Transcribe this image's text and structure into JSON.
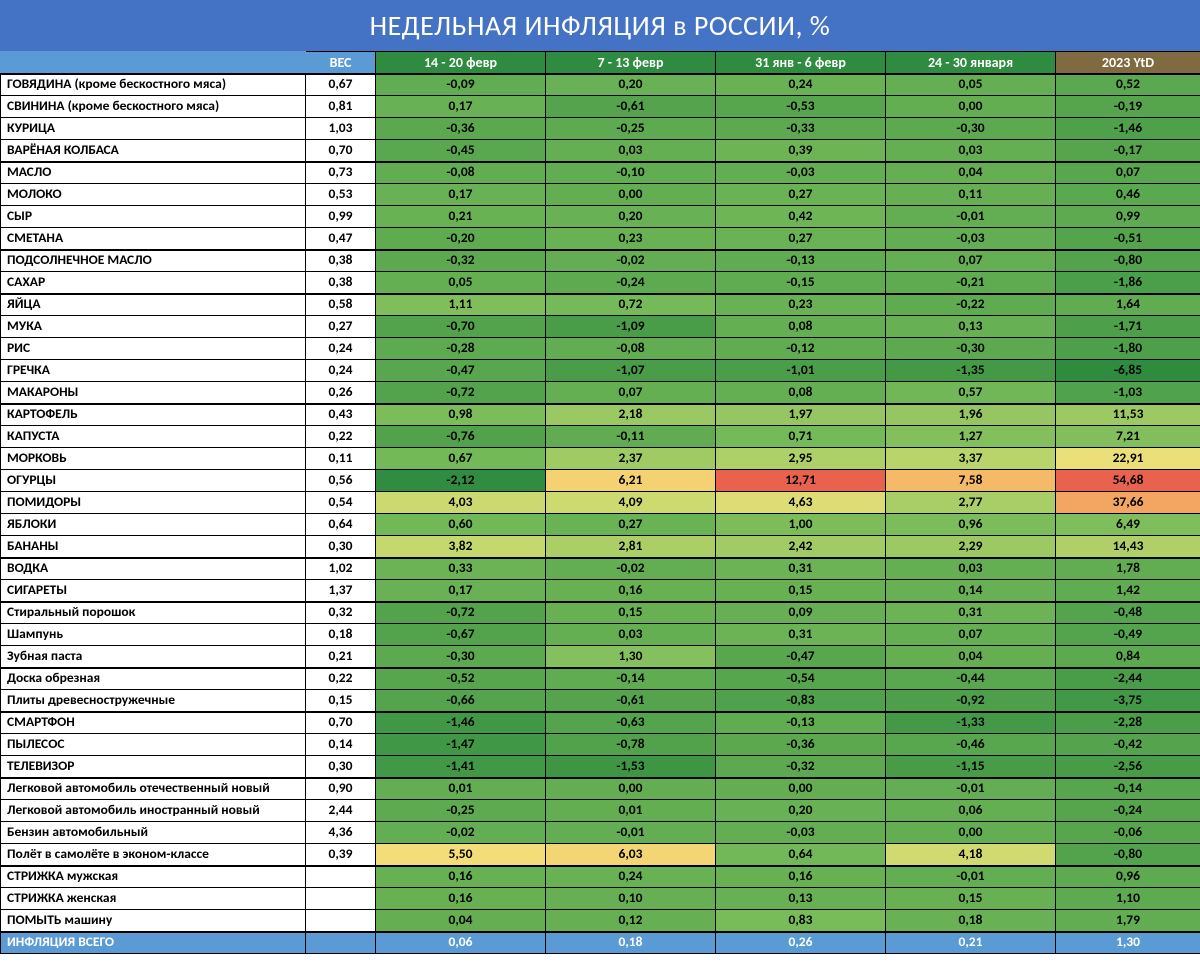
{
  "title": "НЕДЕЛЬНАЯ ИНФЛЯЦИЯ в РОССИИ, %",
  "columns": {
    "name_header": "",
    "weight_header": "ВЕС",
    "weeks": [
      "14 - 20 февр",
      "7 - 13 февр",
      "31 янв - 6 февр",
      "24 - 30 января"
    ],
    "ytd_header": "2023 YtD"
  },
  "heatmap_palette": {
    "comment": "green = negative/low, yellow = near-zero, orange/red = high positive",
    "scale": [
      {
        "t": 0.0,
        "c": "#2e8b3f"
      },
      {
        "t": 0.2,
        "c": "#77bb59"
      },
      {
        "t": 0.4,
        "c": "#c4d86e"
      },
      {
        "t": 0.5,
        "c": "#f2e07a"
      },
      {
        "t": 0.6,
        "c": "#f7c96b"
      },
      {
        "t": 0.8,
        "c": "#f08f5c"
      },
      {
        "t": 1.0,
        "c": "#e8614d"
      }
    ],
    "week_min": -2.2,
    "week_max": 12.8,
    "ytd_min": -7.0,
    "ytd_max": 55.0
  },
  "sections": [
    {
      "rows": [
        {
          "name": "ГОВЯДИНА (кроме бескостного мяса)",
          "weight": "0,67",
          "vals": [
            -0.09,
            0.2,
            0.24,
            0.05
          ],
          "ytd": 0.52
        },
        {
          "name": "СВИНИНА (кроме бескостного мяса)",
          "weight": "0,81",
          "vals": [
            0.17,
            -0.61,
            -0.53,
            0.0
          ],
          "ytd": -0.19
        },
        {
          "name": "КУРИЦА",
          "weight": "1,03",
          "vals": [
            -0.36,
            -0.25,
            -0.33,
            -0.3
          ],
          "ytd": -1.46
        },
        {
          "name": "ВАРЁНАЯ КОЛБАСА",
          "weight": "0,70",
          "vals": [
            -0.45,
            0.03,
            0.39,
            0.03
          ],
          "ytd": -0.17
        }
      ]
    },
    {
      "rows": [
        {
          "name": "МАСЛО",
          "weight": "0,73",
          "vals": [
            -0.08,
            -0.1,
            -0.03,
            0.04
          ],
          "ytd": 0.07
        },
        {
          "name": "МОЛОКО",
          "weight": "0,53",
          "vals": [
            0.17,
            0.0,
            0.27,
            0.11
          ],
          "ytd": 0.46
        },
        {
          "name": "СЫР",
          "weight": "0,99",
          "vals": [
            0.21,
            0.2,
            0.42,
            -0.01
          ],
          "ytd": 0.99
        },
        {
          "name": "СМЕТАНА",
          "weight": "0,47",
          "vals": [
            -0.2,
            0.23,
            0.27,
            -0.03
          ],
          "ytd": -0.51
        }
      ]
    },
    {
      "rows": [
        {
          "name": "ПОДСОЛНЕЧНОЕ МАСЛО",
          "weight": "0,38",
          "vals": [
            -0.32,
            -0.02,
            -0.13,
            0.07
          ],
          "ytd": -0.8
        },
        {
          "name": "САХАР",
          "weight": "0,38",
          "vals": [
            0.05,
            -0.24,
            -0.15,
            -0.21
          ],
          "ytd": -1.86
        }
      ]
    },
    {
      "rows": [
        {
          "name": "ЯЙЦА",
          "weight": "0,58",
          "vals": [
            1.11,
            0.72,
            0.23,
            -0.22
          ],
          "ytd": 1.64
        },
        {
          "name": "МУКА",
          "weight": "0,27",
          "vals": [
            -0.7,
            -1.09,
            0.08,
            0.13
          ],
          "ytd": -1.71
        },
        {
          "name": "РИС",
          "weight": "0,24",
          "vals": [
            -0.28,
            -0.08,
            -0.12,
            -0.3
          ],
          "ytd": -1.8
        },
        {
          "name": "ГРЕЧКА",
          "weight": "0,24",
          "vals": [
            -0.47,
            -1.07,
            -1.01,
            -1.35
          ],
          "ytd": -6.85
        },
        {
          "name": "МАКАРОНЫ",
          "weight": "0,26",
          "vals": [
            -0.72,
            0.07,
            0.08,
            0.57
          ],
          "ytd": -1.03
        }
      ]
    },
    {
      "rows": [
        {
          "name": "КАРТОФЕЛЬ",
          "weight": "0,43",
          "vals": [
            0.98,
            2.18,
            1.97,
            1.96
          ],
          "ytd": 11.53
        },
        {
          "name": "КАПУСТА",
          "weight": "0,22",
          "vals": [
            -0.76,
            -0.11,
            0.71,
            1.27
          ],
          "ytd": 7.21
        },
        {
          "name": "МОРКОВЬ",
          "weight": "0,11",
          "vals": [
            0.67,
            2.37,
            2.95,
            3.37
          ],
          "ytd": 22.91
        },
        {
          "name": "ОГУРЦЫ",
          "weight": "0,56",
          "vals": [
            -2.12,
            6.21,
            12.71,
            7.58
          ],
          "ytd": 54.68
        },
        {
          "name": "ПОМИДОРЫ",
          "weight": "0,54",
          "vals": [
            4.03,
            4.09,
            4.63,
            2.77
          ],
          "ytd": 37.66
        },
        {
          "name": "ЯБЛОКИ",
          "weight": "0,64",
          "vals": [
            0.6,
            0.27,
            1.0,
            0.96
          ],
          "ytd": 6.49
        },
        {
          "name": "БАНАНЫ",
          "weight": "0,30",
          "vals": [
            3.82,
            2.81,
            2.42,
            2.29
          ],
          "ytd": 14.43
        }
      ]
    },
    {
      "rows": [
        {
          "name": "ВОДКА",
          "weight": "1,02",
          "vals": [
            0.33,
            -0.02,
            0.31,
            0.03
          ],
          "ytd": 1.78
        },
        {
          "name": "СИГАРЕТЫ",
          "weight": "1,37",
          "vals": [
            0.17,
            0.16,
            0.15,
            0.14
          ],
          "ytd": 1.42
        }
      ]
    },
    {
      "rows": [
        {
          "name": "Стиральный порошок",
          "weight": "0,32",
          "vals": [
            -0.72,
            0.15,
            0.09,
            0.31
          ],
          "ytd": -0.48
        },
        {
          "name": "Шампунь",
          "weight": "0,18",
          "vals": [
            -0.67,
            0.03,
            0.31,
            0.07
          ],
          "ytd": -0.49
        },
        {
          "name": "Зубная паста",
          "weight": "0,21",
          "vals": [
            -0.3,
            1.3,
            -0.47,
            0.04
          ],
          "ytd": 0.84
        }
      ]
    },
    {
      "rows": [
        {
          "name": "Доска обрезная",
          "weight": "0,22",
          "vals": [
            -0.52,
            -0.14,
            -0.54,
            -0.44
          ],
          "ytd": -2.44
        },
        {
          "name": "Плиты древесностружечные",
          "weight": "0,15",
          "vals": [
            -0.66,
            -0.61,
            -0.83,
            -0.92
          ],
          "ytd": -3.75
        }
      ]
    },
    {
      "rows": [
        {
          "name": "СМАРТФОН",
          "weight": "0,70",
          "vals": [
            -1.46,
            -0.63,
            -0.13,
            -1.33
          ],
          "ytd": -2.28
        },
        {
          "name": "ПЫЛЕСОС",
          "weight": "0,14",
          "vals": [
            -1.47,
            -0.78,
            -0.36,
            -0.46
          ],
          "ytd": -0.42
        },
        {
          "name": "ТЕЛЕВИЗОР",
          "weight": "0,30",
          "vals": [
            -1.41,
            -1.53,
            -0.32,
            -1.15
          ],
          "ytd": -2.56
        }
      ]
    },
    {
      "rows": [
        {
          "name": "Легковой автомобиль отечественный новый",
          "weight": "0,90",
          "vals": [
            0.01,
            0.0,
            0.0,
            -0.01
          ],
          "ytd": -0.14
        },
        {
          "name": "Легковой автомобиль иностранный новый",
          "weight": "2,44",
          "vals": [
            -0.25,
            0.01,
            0.2,
            0.06
          ],
          "ytd": -0.24
        },
        {
          "name": "Бензин автомобильный",
          "weight": "4,36",
          "vals": [
            -0.02,
            -0.01,
            -0.03,
            0.0
          ],
          "ytd": -0.06
        },
        {
          "name": "Полёт в самолёте в эконом-классе",
          "weight": "0,39",
          "vals": [
            5.5,
            6.03,
            0.64,
            4.18
          ],
          "ytd": -0.8
        }
      ]
    },
    {
      "rows": [
        {
          "name": "СТРИЖКА мужская",
          "weight": "",
          "vals": [
            0.16,
            0.24,
            0.16,
            -0.01
          ],
          "ytd": 0.96
        },
        {
          "name": "СТРИЖКА женская",
          "weight": "",
          "vals": [
            0.16,
            0.1,
            0.13,
            0.15
          ],
          "ytd": 1.1
        },
        {
          "name": "ПОМЫТЬ машину",
          "weight": "",
          "vals": [
            0.04,
            0.12,
            0.83,
            0.18
          ],
          "ytd": 1.79
        }
      ]
    }
  ],
  "footer": {
    "name": "ИНФЛЯЦИЯ ВСЕГО",
    "weight": "",
    "vals": [
      "0,06",
      "0,18",
      "0,26",
      "0,21"
    ],
    "ytd": "1,30"
  }
}
